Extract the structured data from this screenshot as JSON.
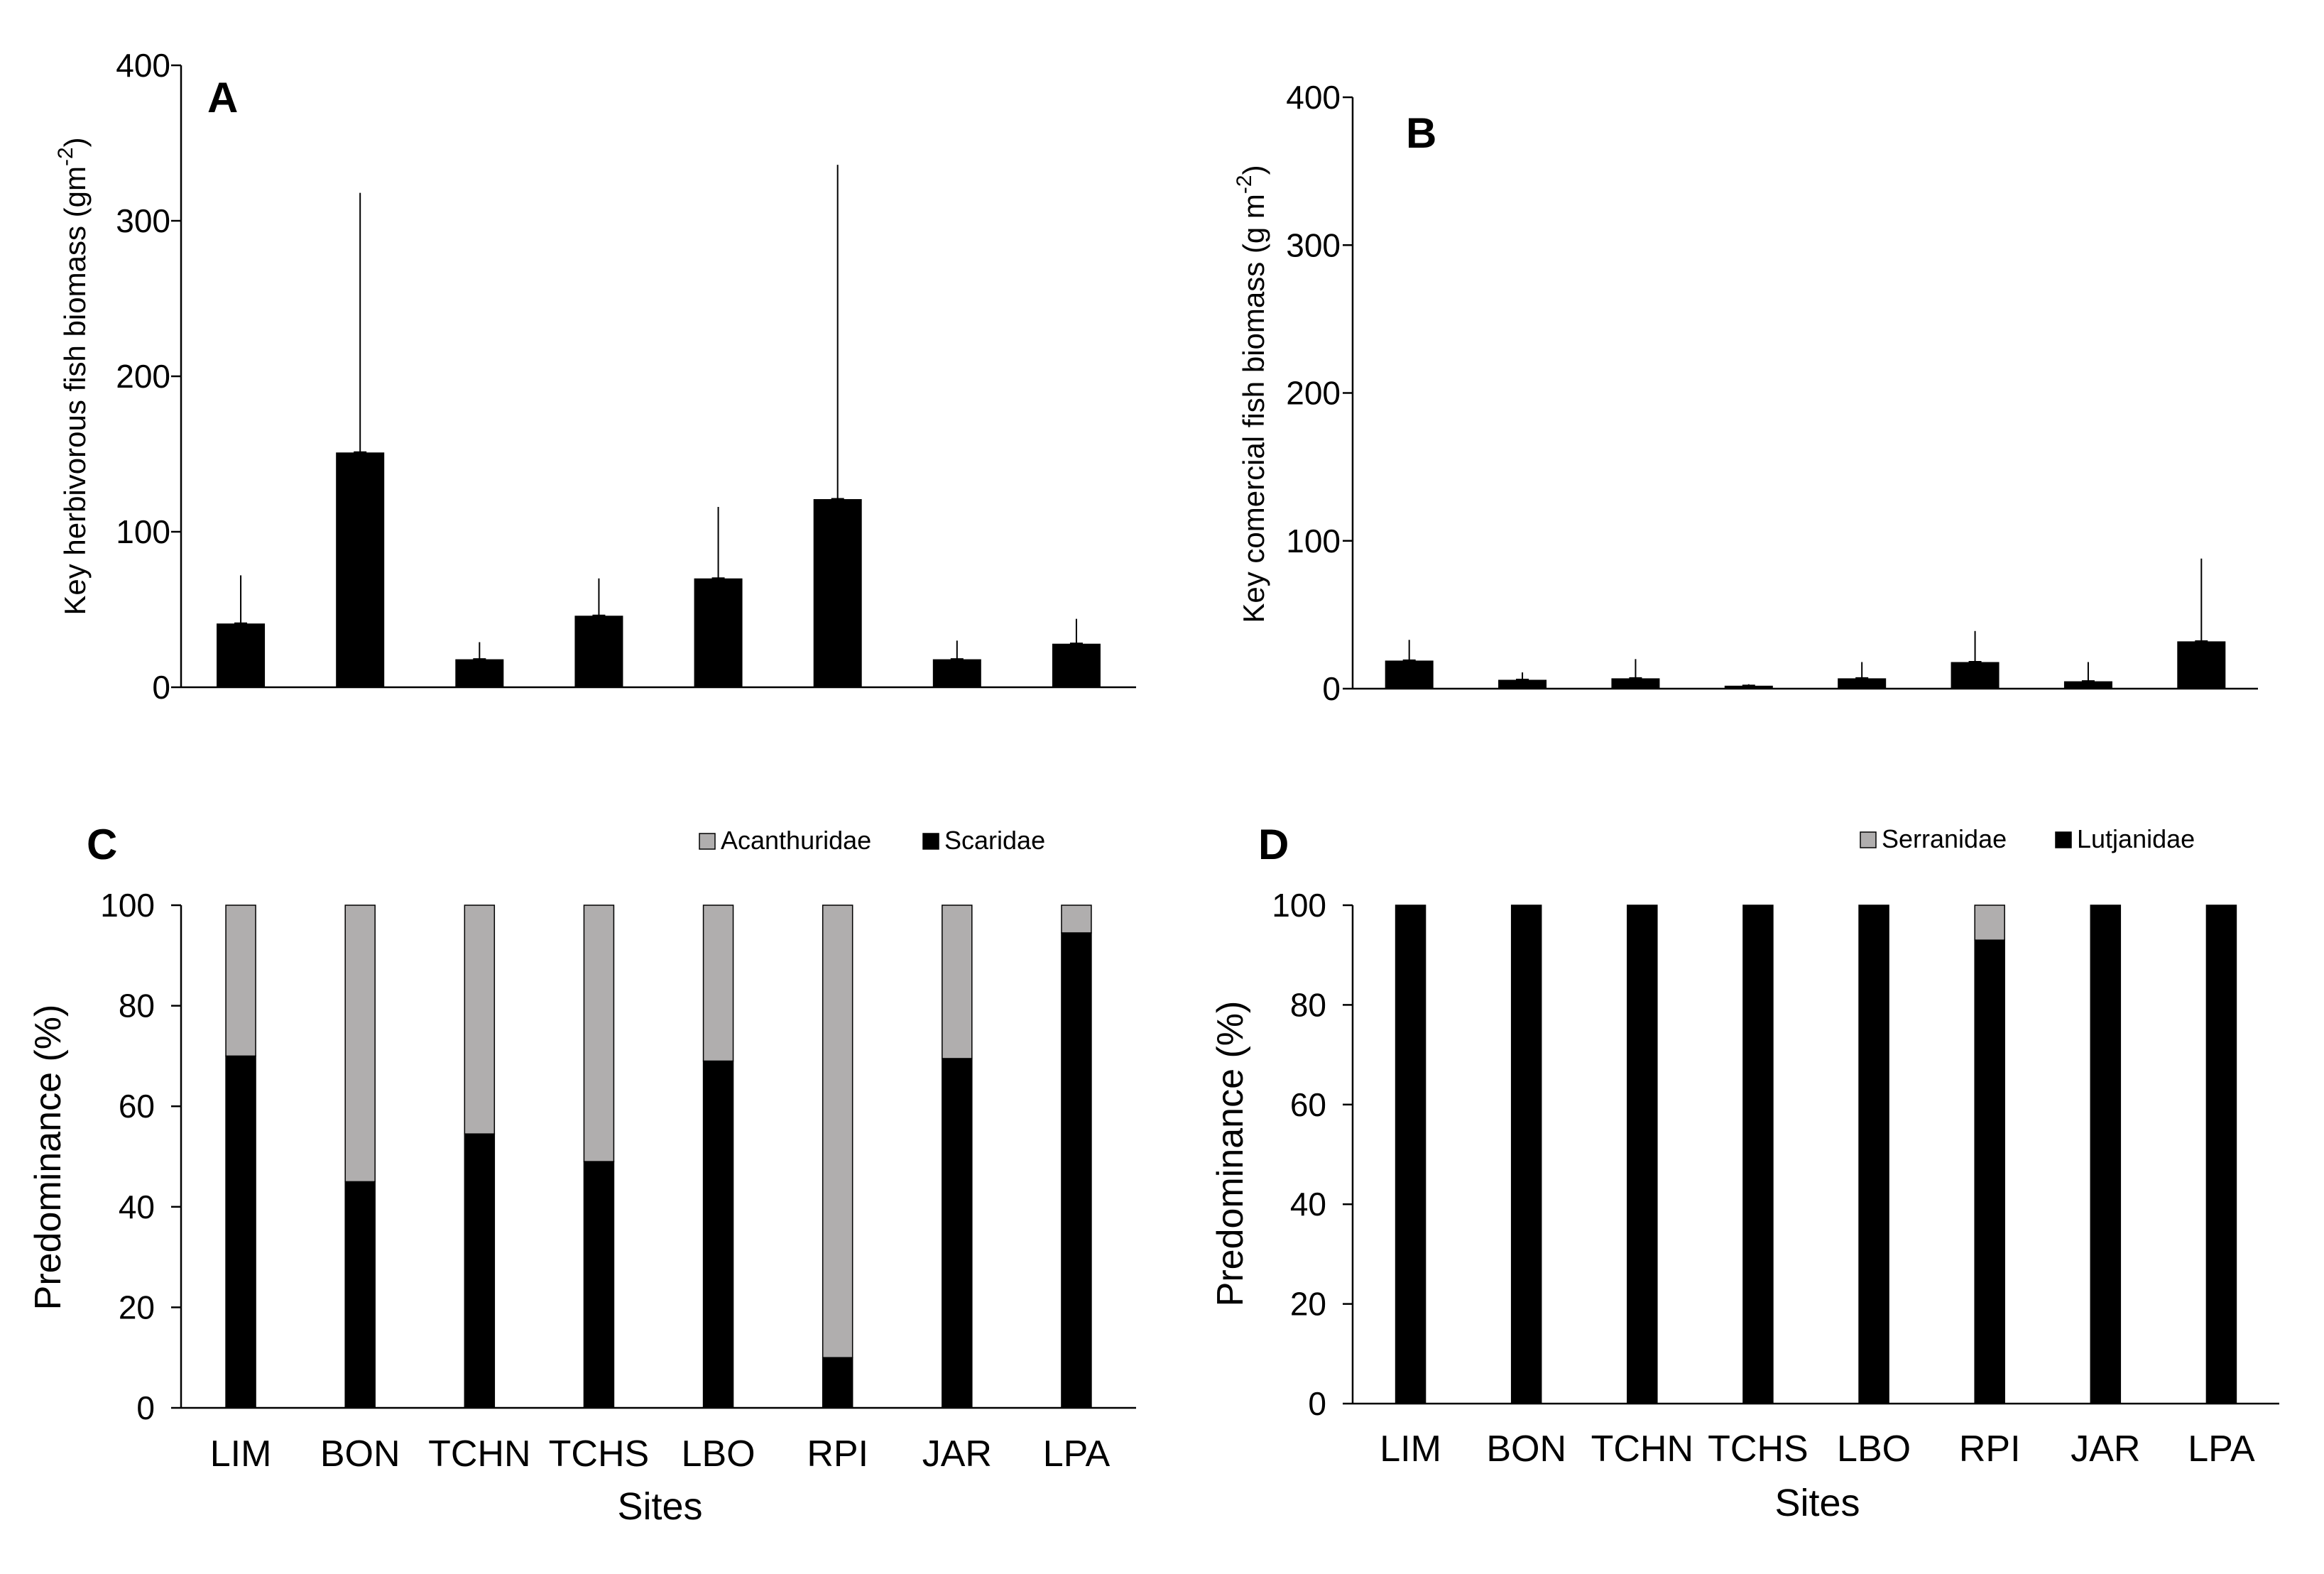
{
  "chart_data": [
    {
      "panel": "A",
      "type": "bar",
      "panel_label": "A",
      "ylabel": "Key herbivorous fish biomass (gm",
      "ylabel_sup": "-2",
      "ylabel_close": ")",
      "xlabel": "",
      "ylim": [
        0,
        400
      ],
      "yticks": [
        0,
        100,
        200,
        300,
        400
      ],
      "categories": [
        "LIM",
        "BON",
        "TCHN",
        "TCHS",
        "LBO",
        "RPI",
        "JAR",
        "LPA"
      ],
      "show_category_labels": false,
      "values": [
        41,
        151,
        18,
        46,
        70,
        121,
        18,
        28
      ],
      "error_top": [
        72,
        318,
        29,
        70,
        116,
        336,
        30,
        44
      ],
      "color": "#000000"
    },
    {
      "panel": "B",
      "type": "bar",
      "panel_label": "B",
      "ylabel": "Key comercial fish biomass (g m",
      "ylabel_sup": "-2",
      "ylabel_close": ")",
      "xlabel": "",
      "ylim": [
        0,
        400
      ],
      "yticks": [
        0,
        100,
        200,
        300,
        400
      ],
      "categories": [
        "LIM",
        "BON",
        "TCHN",
        "TCHS",
        "LBO",
        "RPI",
        "JAR",
        "LPA"
      ],
      "show_category_labels": false,
      "values": [
        19,
        6,
        7,
        2,
        7,
        18,
        5,
        32
      ],
      "error_top": [
        33,
        11,
        20,
        3,
        18,
        39,
        18,
        88
      ],
      "color": "#000000"
    },
    {
      "panel": "C",
      "type": "bar",
      "stacked": true,
      "panel_label": "C",
      "ylabel": "Predominance (%)",
      "xlabel": "Sites",
      "ylim": [
        0,
        100
      ],
      "yticks": [
        0,
        20,
        40,
        60,
        80,
        100
      ],
      "categories": [
        "LIM",
        "BON",
        "TCHN",
        "TCHS",
        "LBO",
        "RPI",
        "JAR",
        "LPA"
      ],
      "show_category_labels": true,
      "series": [
        {
          "name": "Scaridae",
          "color": "#000000",
          "values": [
            70,
            45,
            54.5,
            49,
            69,
            10,
            69.5,
            94.5
          ]
        },
        {
          "name": "Acanthuridae",
          "color": "#b0aeae",
          "values": [
            30,
            55,
            45.5,
            51,
            31,
            90,
            30.5,
            5.5
          ]
        }
      ],
      "legend": [
        "Acanthuridae",
        "Scaridae"
      ]
    },
    {
      "panel": "D",
      "type": "bar",
      "stacked": true,
      "panel_label": "D",
      "ylabel": "Predominance (%)",
      "xlabel": "Sites",
      "ylim": [
        0,
        100
      ],
      "yticks": [
        0,
        20,
        40,
        60,
        80,
        100
      ],
      "categories": [
        "LIM",
        "BON",
        "TCHN",
        "TCHS",
        "LBO",
        "RPI",
        "JAR",
        "LPA"
      ],
      "show_category_labels": true,
      "series": [
        {
          "name": "Lutjanidae",
          "color": "#000000",
          "values": [
            100,
            100,
            100,
            100,
            100,
            93,
            100,
            100
          ]
        },
        {
          "name": "Serranidae",
          "color": "#b0aeae",
          "values": [
            0,
            0,
            0,
            0,
            0,
            7,
            0,
            0
          ]
        }
      ],
      "legend": [
        "Serranidae",
        "Lutjanidae"
      ]
    }
  ]
}
